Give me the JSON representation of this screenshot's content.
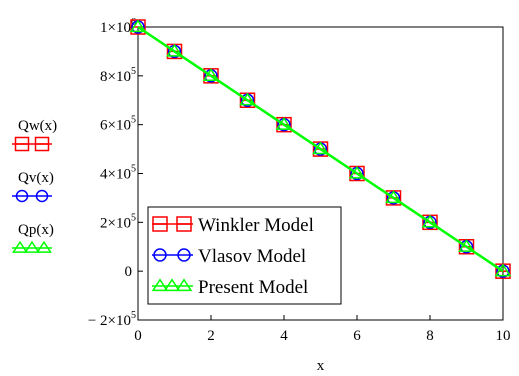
{
  "chart_data": {
    "type": "line",
    "xlabel": "x",
    "ylabel": "",
    "xlim": [
      0,
      10
    ],
    "ylim": [
      -200000,
      1000000
    ],
    "x_ticks": [
      0,
      2,
      4,
      6,
      8,
      10
    ],
    "x_tick_labels": [
      "0",
      "2",
      "4",
      "6",
      "8",
      "10"
    ],
    "y_ticks": [
      {
        "value": 1000000,
        "mantissa": "1×10",
        "exponent": "6",
        "plain": ""
      },
      {
        "value": 800000,
        "mantissa": "8×10",
        "exponent": "5",
        "plain": ""
      },
      {
        "value": 600000,
        "mantissa": "6×10",
        "exponent": "5",
        "plain": ""
      },
      {
        "value": 400000,
        "mantissa": "4×10",
        "exponent": "5",
        "plain": ""
      },
      {
        "value": 200000,
        "mantissa": "2×10",
        "exponent": "5",
        "plain": ""
      },
      {
        "value": 0,
        "mantissa": "",
        "exponent": "",
        "plain": "0"
      },
      {
        "value": -200000,
        "mantissa": "− 2×10",
        "exponent": "5",
        "plain": ""
      }
    ],
    "x": [
      0,
      1,
      2,
      3,
      4,
      5,
      6,
      7,
      8,
      9,
      10
    ],
    "series": [
      {
        "name": "Winkler Model",
        "side_label": "Qw(x)",
        "color": "#ff0000",
        "marker": "square",
        "values": [
          1000000,
          900000,
          800000,
          700000,
          600000,
          500000,
          400000,
          300000,
          200000,
          100000,
          0
        ]
      },
      {
        "name": "Vlasov Model",
        "side_label": "Qv(x)",
        "color": "#0000ff",
        "marker": "circle",
        "values": [
          1000000,
          900000,
          800000,
          700000,
          600000,
          500000,
          400000,
          300000,
          200000,
          100000,
          0
        ]
      },
      {
        "name": "Present Model",
        "side_label": "Qp(x)",
        "color": "#00ff00",
        "marker": "triangle",
        "values": [
          1000000,
          900000,
          800000,
          700000,
          600000,
          500000,
          400000,
          300000,
          200000,
          100000,
          0
        ]
      }
    ],
    "legend_position": "bottom-left",
    "grid": false
  }
}
